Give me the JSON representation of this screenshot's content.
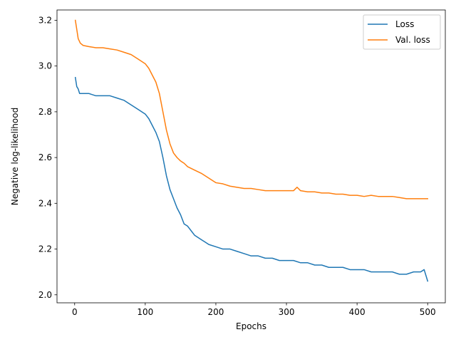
{
  "chart_data": {
    "type": "line",
    "title": "",
    "xlabel": "Epochs",
    "ylabel": "Negative log-likelihood",
    "xlim": [
      -25,
      525
    ],
    "ylim": [
      1.965,
      3.245
    ],
    "xticks": [
      0,
      100,
      200,
      300,
      400,
      500
    ],
    "yticks": [
      2.0,
      2.2,
      2.4,
      2.6,
      2.8,
      3.0,
      3.2
    ],
    "ytick_labels": [
      "2.0",
      "2.2",
      "2.4",
      "2.6",
      "2.8",
      "3.0",
      "3.2"
    ],
    "grid": false,
    "legend_position": "top-right",
    "series": [
      {
        "name": "Loss",
        "color": "#1f77b4",
        "points": [
          [
            1,
            2.95
          ],
          [
            3,
            2.91
          ],
          [
            5,
            2.9
          ],
          [
            7,
            2.88
          ],
          [
            10,
            2.88
          ],
          [
            15,
            2.88
          ],
          [
            20,
            2.88
          ],
          [
            30,
            2.87
          ],
          [
            40,
            2.87
          ],
          [
            50,
            2.87
          ],
          [
            60,
            2.86
          ],
          [
            70,
            2.85
          ],
          [
            80,
            2.83
          ],
          [
            90,
            2.81
          ],
          [
            100,
            2.79
          ],
          [
            105,
            2.77
          ],
          [
            110,
            2.74
          ],
          [
            115,
            2.71
          ],
          [
            120,
            2.67
          ],
          [
            125,
            2.6
          ],
          [
            130,
            2.52
          ],
          [
            135,
            2.46
          ],
          [
            140,
            2.42
          ],
          [
            145,
            2.38
          ],
          [
            150,
            2.35
          ],
          [
            155,
            2.31
          ],
          [
            160,
            2.3
          ],
          [
            165,
            2.28
          ],
          [
            170,
            2.26
          ],
          [
            175,
            2.25
          ],
          [
            180,
            2.24
          ],
          [
            185,
            2.23
          ],
          [
            190,
            2.22
          ],
          [
            200,
            2.21
          ],
          [
            210,
            2.2
          ],
          [
            220,
            2.2
          ],
          [
            230,
            2.19
          ],
          [
            240,
            2.18
          ],
          [
            250,
            2.17
          ],
          [
            260,
            2.17
          ],
          [
            270,
            2.16
          ],
          [
            280,
            2.16
          ],
          [
            290,
            2.15
          ],
          [
            300,
            2.15
          ],
          [
            310,
            2.15
          ],
          [
            320,
            2.14
          ],
          [
            330,
            2.14
          ],
          [
            340,
            2.13
          ],
          [
            350,
            2.13
          ],
          [
            360,
            2.12
          ],
          [
            370,
            2.12
          ],
          [
            380,
            2.12
          ],
          [
            390,
            2.11
          ],
          [
            400,
            2.11
          ],
          [
            410,
            2.11
          ],
          [
            420,
            2.1
          ],
          [
            430,
            2.1
          ],
          [
            440,
            2.1
          ],
          [
            450,
            2.1
          ],
          [
            460,
            2.09
          ],
          [
            470,
            2.09
          ],
          [
            480,
            2.1
          ],
          [
            490,
            2.1
          ],
          [
            495,
            2.11
          ],
          [
            500,
            2.06
          ]
        ]
      },
      {
        "name": "Val. loss",
        "color": "#ff7f0e",
        "points": [
          [
            1,
            3.2
          ],
          [
            3,
            3.16
          ],
          [
            5,
            3.12
          ],
          [
            8,
            3.1
          ],
          [
            12,
            3.09
          ],
          [
            20,
            3.085
          ],
          [
            30,
            3.08
          ],
          [
            40,
            3.08
          ],
          [
            50,
            3.075
          ],
          [
            60,
            3.07
          ],
          [
            70,
            3.06
          ],
          [
            80,
            3.05
          ],
          [
            90,
            3.03
          ],
          [
            100,
            3.01
          ],
          [
            105,
            2.99
          ],
          [
            110,
            2.96
          ],
          [
            115,
            2.93
          ],
          [
            120,
            2.88
          ],
          [
            125,
            2.8
          ],
          [
            130,
            2.72
          ],
          [
            135,
            2.66
          ],
          [
            140,
            2.62
          ],
          [
            145,
            2.6
          ],
          [
            150,
            2.585
          ],
          [
            155,
            2.575
          ],
          [
            160,
            2.56
          ],
          [
            170,
            2.545
          ],
          [
            180,
            2.53
          ],
          [
            190,
            2.51
          ],
          [
            200,
            2.49
          ],
          [
            210,
            2.485
          ],
          [
            220,
            2.475
          ],
          [
            230,
            2.47
          ],
          [
            240,
            2.465
          ],
          [
            250,
            2.465
          ],
          [
            260,
            2.46
          ],
          [
            270,
            2.455
          ],
          [
            280,
            2.455
          ],
          [
            290,
            2.455
          ],
          [
            300,
            2.455
          ],
          [
            310,
            2.455
          ],
          [
            315,
            2.47
          ],
          [
            320,
            2.455
          ],
          [
            330,
            2.45
          ],
          [
            340,
            2.45
          ],
          [
            350,
            2.445
          ],
          [
            360,
            2.445
          ],
          [
            370,
            2.44
          ],
          [
            380,
            2.44
          ],
          [
            390,
            2.435
          ],
          [
            400,
            2.435
          ],
          [
            410,
            2.43
          ],
          [
            420,
            2.435
          ],
          [
            430,
            2.43
          ],
          [
            440,
            2.43
          ],
          [
            450,
            2.43
          ],
          [
            460,
            2.425
          ],
          [
            470,
            2.42
          ],
          [
            480,
            2.42
          ],
          [
            490,
            2.42
          ],
          [
            500,
            2.42
          ]
        ]
      }
    ]
  }
}
